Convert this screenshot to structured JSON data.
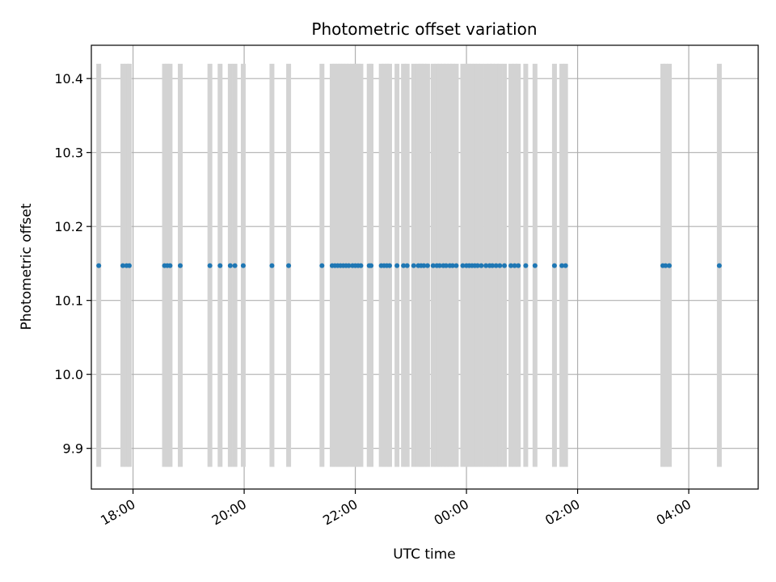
{
  "chart_data": {
    "type": "scatter",
    "title": "Photometric offset variation",
    "xlabel": "UTC time",
    "ylabel": "Photometric offset",
    "x_unit": "UTC time (hours, continuing past midnight)",
    "xlim": [
      "17:15",
      "05:15"
    ],
    "ylim": [
      9.845,
      10.445
    ],
    "y_ticks": [
      9.9,
      10.0,
      10.1,
      10.2,
      10.3,
      10.4
    ],
    "x_ticks": [
      "18:00",
      "20:00",
      "22:00",
      "00:00",
      "02:00",
      "04:00"
    ],
    "grid": true,
    "point_value": 10.147,
    "band_range": [
      9.875,
      10.42
    ],
    "colors": {
      "points": "#1f77b4",
      "bands": "#d3d3d3",
      "grid": "#b0b0b0",
      "axis": "#000000"
    },
    "times": [
      "17:23",
      "17:49",
      "17:53",
      "17:56",
      "18:34",
      "18:37",
      "18:40",
      "18:51",
      "19:23",
      "19:34",
      "19:45",
      "19:50",
      "19:59",
      "20:30",
      "20:48",
      "21:24",
      "21:35",
      "21:38",
      "21:41",
      "21:44",
      "21:47",
      "21:50",
      "21:53",
      "21:57",
      "22:00",
      "22:03",
      "22:06",
      "22:15",
      "22:17",
      "22:28",
      "22:31",
      "22:34",
      "22:37",
      "22:45",
      "22:52",
      "22:56",
      "23:03",
      "23:08",
      "23:11",
      "23:14",
      "23:18",
      "23:24",
      "23:28",
      "23:31",
      "23:35",
      "23:38",
      "23:42",
      "23:45",
      "23:49",
      "23:56",
      "00:00",
      "00:03",
      "00:06",
      "00:09",
      "00:12",
      "00:16",
      "00:21",
      "00:25",
      "00:28",
      "00:32",
      "00:36",
      "00:41",
      "00:48",
      "00:52",
      "00:56",
      "01:04",
      "01:14",
      "01:35",
      "01:43",
      "01:47",
      "03:32",
      "03:35",
      "03:39",
      "04:33"
    ]
  }
}
